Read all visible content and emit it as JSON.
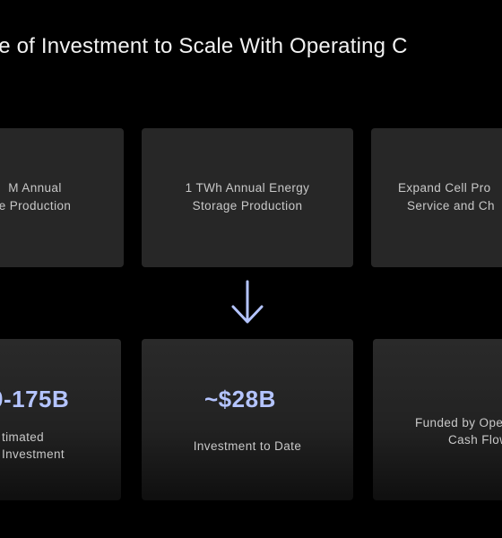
{
  "title": "ce of Investment to Scale With Operating C",
  "top_row": [
    {
      "line1": "M Annual",
      "line2": "e Production"
    },
    {
      "line1": "1 TWh Annual Energy",
      "line2": "Storage Production"
    },
    {
      "line1": "Expand Cell Pro",
      "line2": "Service and Ch"
    }
  ],
  "bottom_row": [
    {
      "value": "0-175B",
      "line1": "timated",
      "line2": "Investment"
    },
    {
      "value": "~$28B",
      "line1": "Investment to Date"
    },
    {
      "line1": "Funded by Ope",
      "line2": "Cash Flow"
    }
  ],
  "colors": {
    "accent": "#b4c4ff",
    "card_background": "#272727",
    "page_background": "#000000"
  },
  "icons": {
    "arrow": "arrow-down-icon"
  }
}
